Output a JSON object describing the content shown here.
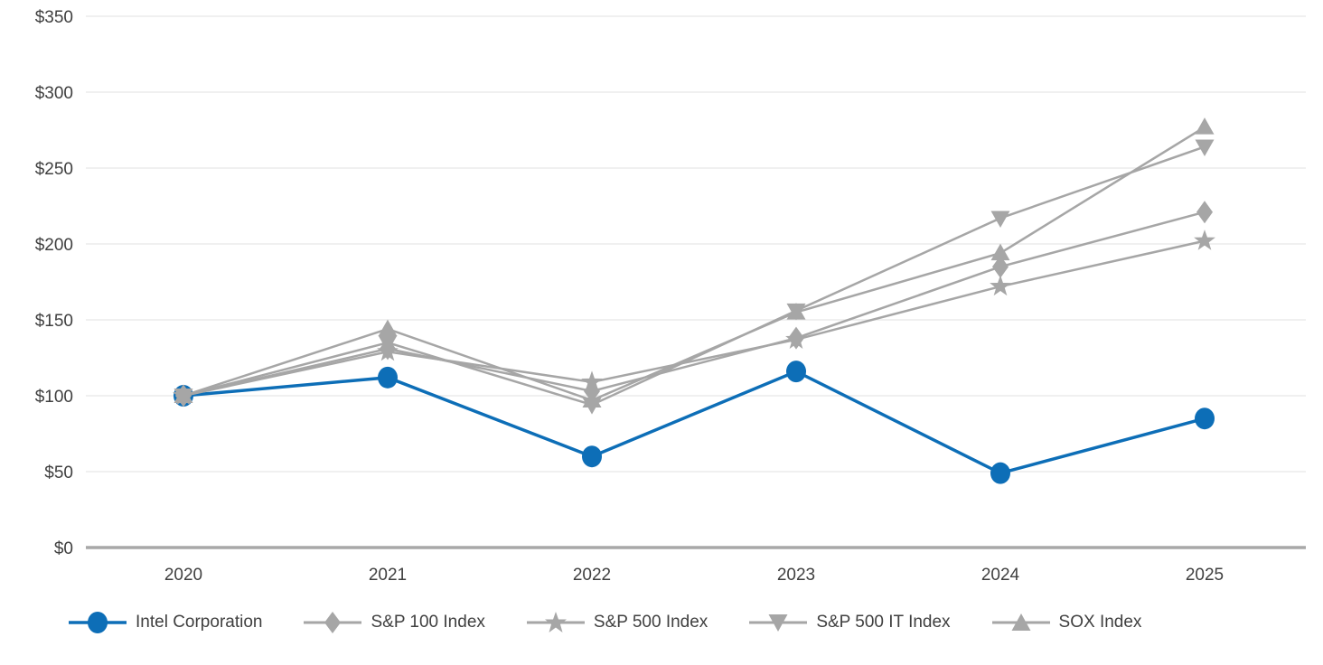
{
  "chart_data": {
    "type": "line",
    "title": "",
    "xlabel": "",
    "ylabel": "",
    "x": [
      "2020",
      "2021",
      "2022",
      "2023",
      "2024",
      "2025"
    ],
    "series": [
      {
        "name": "Intel Corporation",
        "marker": "circle",
        "color": "#0d6eb7",
        "values": [
          100,
          112,
          60,
          116,
          49,
          85
        ]
      },
      {
        "name": "S&P 100 Index",
        "marker": "diamond",
        "color": "#a6a6a6",
        "values": [
          100,
          131,
          103,
          138,
          185,
          221
        ]
      },
      {
        "name": "S&P 500 Index",
        "marker": "star",
        "color": "#a6a6a6",
        "values": [
          100,
          129,
          109,
          137,
          172,
          202
        ]
      },
      {
        "name": "S&P 500 IT Index",
        "marker": "triangle-down",
        "color": "#a6a6a6",
        "values": [
          100,
          135,
          94,
          156,
          217,
          264
        ]
      },
      {
        "name": "SOX Index",
        "marker": "triangle-up",
        "color": "#a6a6a6",
        "values": [
          100,
          144,
          97,
          155,
          194,
          277
        ]
      }
    ],
    "y_ticks": [
      "$0",
      "$50",
      "$100",
      "$150",
      "$200",
      "$250",
      "$300",
      "$350"
    ],
    "y_tick_values": [
      0,
      50,
      100,
      150,
      200,
      250,
      300,
      350
    ],
    "ylim": [
      0,
      350
    ],
    "grid": true,
    "legend_position": "bottom",
    "colors": {
      "accent_blue": "#0d6eb7",
      "series_gray": "#a6a6a6",
      "gridline": "#ebebeb",
      "axis_line": "#a8a8a8",
      "text": "#404040"
    }
  }
}
